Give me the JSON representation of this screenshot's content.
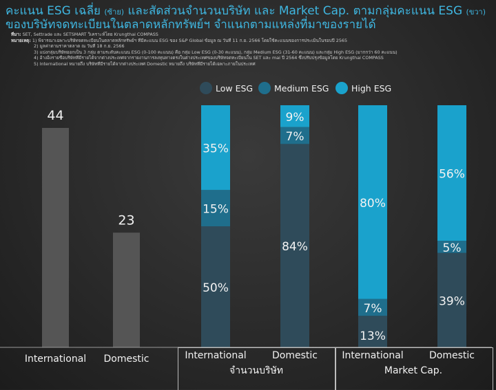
{
  "title": {
    "line1": "คะแนน ESG เฉลี่ย",
    "line1_left": "(ซ้าย)",
    "line1_mid": "และสัดส่วนจำนวนบริษัท และ Market Cap. ตามกลุ่มคะแนน ESG",
    "line1_right": "(ขวา)",
    "line2": "ของบริษัทจดทะเบียนในตลาดหลักทรัพย์ฯ จำแนกตามแหล่งที่มาของรายได้"
  },
  "notes": {
    "source_label": "ที่มา:",
    "source": "SET, Settrade และ SETSMART วิเคราะห์โดย Krungthai COMPASS",
    "remark_label": "หมายเหตุ:",
    "items": [
      "1) พิจารณาเฉพาะบริษัทจดทะเบียนในตลาดหลักทรัพย์ฯ ที่มีคะแนน ESG ของ S&P Global ข้อมูล ณ วันที่ 11 ก.ย. 2566 โดยใช้คะแนนของการประเมินในรอบปี 2565",
      "2) มูลค่าตามราคาตลาด ณ วันที่ 18 ก.ย. 2566",
      "3) แบ่งกลุ่มบริษัทออกเป็น 3 กลุ่ม ตามระดับคะแนน ESG (0-100 คะแนน) คือ กลุ่ม Low ESG (0-30 คะแนน), กลุ่ม Medium ESG (31-60 คะแนน) และกลุ่ม High ESG (มากกว่า 60 คะแนน)",
      "4) อ้างอิงรายชื่อบริษัทที่มีรายได้จากต่างประเทศจากรายงานการลงทุนทางตรงในต่างประเทศของบริษัทจดทะเบียนใน SET และ mai ปี 2564 ซึ่งปรับปรุงข้อมูลโดย Krungthai COMPASS",
      "5) International หมายถึง บริษัทที่มีรายได้จากต่างประเทศ Domestic หมายถึง บริษัทที่มีรายได้เฉพาะภายในประเทศ"
    ]
  },
  "colors": {
    "low": "#2f4b5a",
    "medium": "#1f6e8c",
    "high": "#1aa2cc",
    "left_bar": "#555555",
    "label": "#f2f2f2"
  },
  "chart_data": [
    {
      "type": "bar",
      "categories": [
        "International",
        "Domestic"
      ],
      "values": [
        44,
        23
      ],
      "ylim": [
        0,
        50
      ]
    },
    {
      "type": "bar",
      "stacked": true,
      "percent": true,
      "groups": [
        {
          "name": "จำนวนบริษัท",
          "categories": [
            "International",
            "Domestic"
          ]
        },
        {
          "name": "Market Cap.",
          "categories": [
            "International",
            "Domestic"
          ]
        }
      ],
      "categories": [
        "International",
        "Domestic",
        "International",
        "Domestic"
      ],
      "series": [
        {
          "name": "Low ESG",
          "values": [
            50,
            84,
            13,
            39
          ]
        },
        {
          "name": "Medium ESG",
          "values": [
            15,
            7,
            7,
            5
          ]
        },
        {
          "name": "High ESG",
          "values": [
            35,
            9,
            80,
            56
          ]
        }
      ],
      "legend": "top"
    }
  ]
}
